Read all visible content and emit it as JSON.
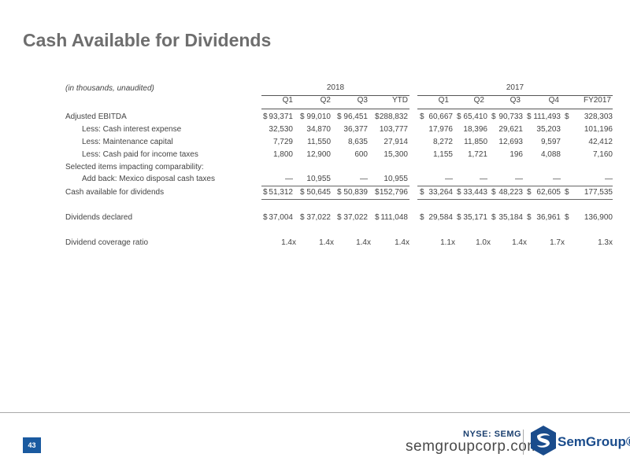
{
  "title": "Cash Available for Dividends",
  "note": "(in thousands, unaudited)",
  "years": [
    "2018",
    "2017"
  ],
  "quarters": [
    "Q1",
    "Q2",
    "Q3",
    "YTD",
    "Q1",
    "Q2",
    "Q3",
    "Q4",
    "FY2017"
  ],
  "rows": {
    "ebitda": {
      "label": "Adjusted EBITDA",
      "values": [
        "93,371",
        "99,010",
        "96,451",
        "288,832",
        "60,667",
        "65,410",
        "90,733",
        "111,493",
        "328,303"
      ]
    },
    "interest": {
      "label": "Less: Cash interest expense",
      "values": [
        "32,530",
        "34,870",
        "36,377",
        "103,777",
        "17,976",
        "18,396",
        "29,621",
        "35,203",
        "101,196"
      ]
    },
    "maint": {
      "label": "Less: Maintenance capital",
      "values": [
        "7,729",
        "11,550",
        "8,635",
        "27,914",
        "8,272",
        "11,850",
        "12,693",
        "9,597",
        "42,412"
      ]
    },
    "tax": {
      "label": "Less: Cash paid for income taxes",
      "values": [
        "1,800",
        "12,900",
        "600",
        "15,300",
        "1,155",
        "1,721",
        "196",
        "4,088",
        "7,160"
      ]
    },
    "selected": {
      "label": "Selected items impacting comparability:"
    },
    "mexico": {
      "label": "Add back: Mexico disposal cash taxes",
      "values": [
        "—",
        "10,955",
        "—",
        "10,955",
        "—",
        "—",
        "—",
        "—",
        "—"
      ]
    },
    "cash": {
      "label": "Cash available for dividends",
      "values": [
        "51,312",
        "50,645",
        "50,839",
        "152,796",
        "33,264",
        "33,443",
        "48,223",
        "62,605",
        "177,535"
      ]
    },
    "dividends": {
      "label": "Dividends declared",
      "values": [
        "37,004",
        "37,022",
        "37,022",
        "111,048",
        "29,584",
        "35,171",
        "35,184",
        "36,961",
        "136,900"
      ]
    },
    "coverage": {
      "label": "Dividend coverage ratio",
      "values": [
        "1.4x",
        "1.4x",
        "1.4x",
        "1.4x",
        "1.1x",
        "1.0x",
        "1.4x",
        "1.7x",
        "1.3x"
      ]
    }
  },
  "dollar_sign": "$",
  "footer": {
    "page_number": "43",
    "ticker": "NYSE: SEMG",
    "website": "semgroupcorp.com",
    "logo_text": "SemGroup®"
  }
}
